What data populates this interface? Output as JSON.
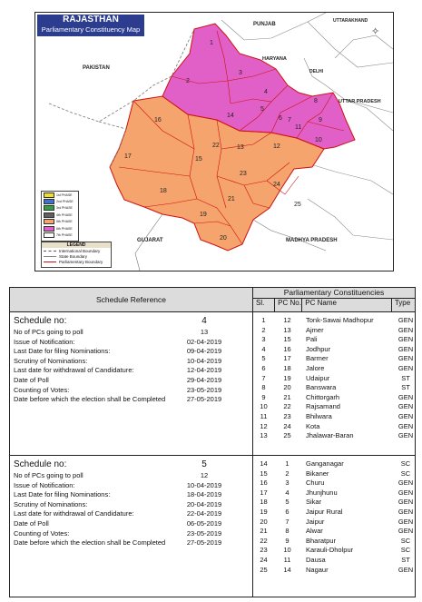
{
  "map": {
    "title": "RAJASTHAN",
    "subtitle": "Parliamentary Constituency Map",
    "neighbours": {
      "pakistan": "PAKISTAN",
      "punjab": "PUNJAB",
      "uttarakhand": "UTTARAKHAND",
      "haryana": "HARYANA",
      "delhi": "DELHI",
      "uttar_pradesh": "UTTAR PRADESH",
      "gujarat": "GUJARAT",
      "madhya_pradesh": "MADHYA PRADESH"
    },
    "colors": {
      "phase4": "#f4a46c",
      "phase5": "#e060c8",
      "border": "#d01010",
      "lines": "#777777"
    },
    "phases": [
      "1st PHASE",
      "2nd PHASE",
      "3rd PHASE",
      "4th PHASE",
      "5th PHASE",
      "6th PHASE",
      "7th PHASE"
    ],
    "phase_colors": [
      "#f0e020",
      "#4070d0",
      "#30a040",
      "#606060",
      "#f4a46c",
      "#e060c8",
      "#ffffff"
    ],
    "legend": {
      "title": "LEGEND",
      "items": [
        "International Boundary",
        "State Boundary",
        "Parliamentary Boundary"
      ]
    },
    "pc_labels": [
      "1",
      "2",
      "3",
      "4",
      "5",
      "6",
      "7",
      "8",
      "9",
      "10",
      "11",
      "12",
      "13",
      "14",
      "15",
      "16",
      "17",
      "18",
      "19",
      "20",
      "21",
      "22",
      "23",
      "24",
      "25"
    ]
  },
  "table": {
    "left_header": "Schedule Reference",
    "right_header": "Parliamentary Constituencies",
    "col_sl": "Sl.",
    "col_pcno": "PC No.",
    "col_pcname": "PC Name",
    "col_type": "Type",
    "schedules": [
      {
        "label": "Schedule no:",
        "number": "4",
        "fields": [
          {
            "k": "No of PCs going to poll",
            "v": "13"
          },
          {
            "k": "Issue of Notification:",
            "v": "02-04-2019"
          },
          {
            "k": "Last Date for filing Nominations:",
            "v": "09-04-2019"
          },
          {
            "k": "Scrutiny of Nominations:",
            "v": "10-04-2019"
          },
          {
            "k": "Last date for withdrawal of Candidature:",
            "v": "12-04-2019"
          },
          {
            "k": "Date of Poll",
            "v": "29-04-2019"
          },
          {
            "k": "Counting of Votes:",
            "v": "23-05-2019"
          },
          {
            "k": "Date before which the election shall be Completed",
            "v": "27-05-2019"
          }
        ],
        "pcs": [
          {
            "sl": "1",
            "no": "12",
            "name": "Tonk-Sawai Madhopur",
            "type": "GEN"
          },
          {
            "sl": "2",
            "no": "13",
            "name": "Ajmer",
            "type": "GEN"
          },
          {
            "sl": "3",
            "no": "15",
            "name": "Pali",
            "type": "GEN"
          },
          {
            "sl": "4",
            "no": "16",
            "name": "Jodhpur",
            "type": "GEN"
          },
          {
            "sl": "5",
            "no": "17",
            "name": "Barmer",
            "type": "GEN"
          },
          {
            "sl": "6",
            "no": "18",
            "name": "Jalore",
            "type": "GEN"
          },
          {
            "sl": "7",
            "no": "19",
            "name": "Udaipur",
            "type": "ST"
          },
          {
            "sl": "8",
            "no": "20",
            "name": "Banswara",
            "type": "ST"
          },
          {
            "sl": "9",
            "no": "21",
            "name": "Chittorgarh",
            "type": "GEN"
          },
          {
            "sl": "10",
            "no": "22",
            "name": "Rajsamand",
            "type": "GEN"
          },
          {
            "sl": "11",
            "no": "23",
            "name": "Bhilwara",
            "type": "GEN"
          },
          {
            "sl": "12",
            "no": "24",
            "name": "Kota",
            "type": "GEN"
          },
          {
            "sl": "13",
            "no": "25",
            "name": "Jhalawar-Baran",
            "type": "GEN"
          }
        ]
      },
      {
        "label": "Schedule no:",
        "number": "5",
        "fields": [
          {
            "k": "No of PCs going to poll",
            "v": "12"
          },
          {
            "k": "Issue of Notification:",
            "v": "10-04-2019"
          },
          {
            "k": "Last Date for filing Nominations:",
            "v": "18-04-2019"
          },
          {
            "k": "Scrutiny of Nominations:",
            "v": "20-04-2019"
          },
          {
            "k": "Last date for withdrawal of Candidature:",
            "v": "22-04-2019"
          },
          {
            "k": "Date of Poll",
            "v": "06-05-2019"
          },
          {
            "k": "Counting of Votes:",
            "v": "23-05-2019"
          },
          {
            "k": "Date before which the election shall be Completed",
            "v": "27-05-2019"
          }
        ],
        "pcs": [
          {
            "sl": "14",
            "no": "1",
            "name": "Ganganagar",
            "type": "SC"
          },
          {
            "sl": "15",
            "no": "2",
            "name": "Bikaner",
            "type": "SC"
          },
          {
            "sl": "16",
            "no": "3",
            "name": "Churu",
            "type": "GEN"
          },
          {
            "sl": "17",
            "no": "4",
            "name": "Jhunjhunu",
            "type": "GEN"
          },
          {
            "sl": "18",
            "no": "5",
            "name": "Sikar",
            "type": "GEN"
          },
          {
            "sl": "19",
            "no": "6",
            "name": "Jaipur Rural",
            "type": "GEN"
          },
          {
            "sl": "20",
            "no": "7",
            "name": "Jaipur",
            "type": "GEN"
          },
          {
            "sl": "21",
            "no": "8",
            "name": "Alwar",
            "type": "GEN"
          },
          {
            "sl": "22",
            "no": "9",
            "name": "Bharatpur",
            "type": "SC"
          },
          {
            "sl": "23",
            "no": "10",
            "name": "Karauli-Dholpur",
            "type": "SC"
          },
          {
            "sl": "24",
            "no": "11",
            "name": "Dausa",
            "type": "ST"
          },
          {
            "sl": "25",
            "no": "14",
            "name": "Nagaur",
            "type": "GEN"
          }
        ]
      }
    ]
  }
}
